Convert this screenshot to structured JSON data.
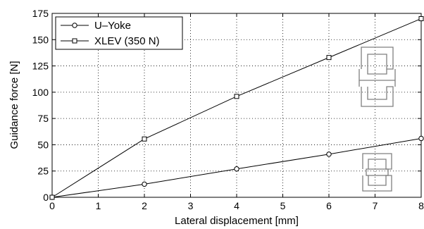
{
  "chart_data": {
    "type": "line",
    "xlabel": "Lateral displacement  [mm]",
    "ylabel": "Guidance force  [N]",
    "xlim": [
      0,
      8
    ],
    "ylim": [
      0,
      175
    ],
    "xticks": [
      "0",
      "1",
      "2",
      "3",
      "4",
      "5",
      "6",
      "7",
      "8"
    ],
    "yticks": [
      "0",
      "25",
      "50",
      "75",
      "100",
      "125",
      "150",
      "175"
    ],
    "grid": true,
    "legend_position": "top-left",
    "series": [
      {
        "name": "U–Yoke",
        "marker": "circle",
        "x": [
          0,
          2,
          4,
          6,
          8
        ],
        "y": [
          0,
          12.5,
          27,
          41,
          56
        ]
      },
      {
        "name": "XLEV (350 N)",
        "marker": "square",
        "x": [
          0,
          2,
          4,
          6,
          8
        ],
        "y": [
          0,
          55.5,
          96,
          133,
          170
        ]
      }
    ]
  }
}
